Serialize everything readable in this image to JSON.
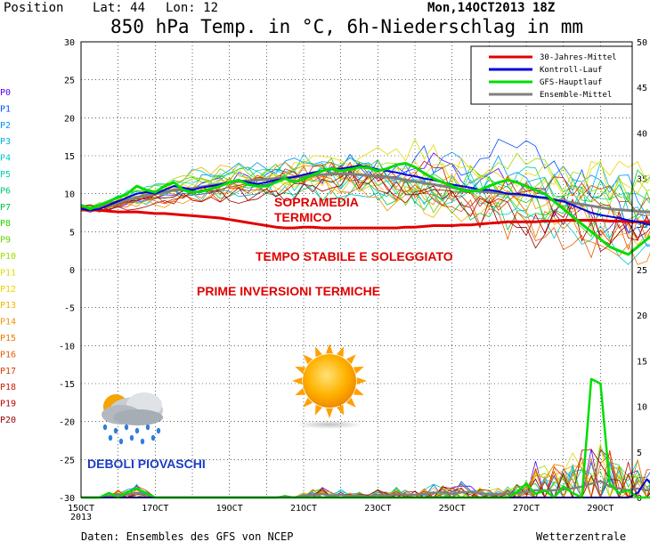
{
  "header": {
    "position_label": "Position",
    "lat_label": "Lat: 44",
    "lon_label": "Lon: 12",
    "date": "Mon,14OCT2013 18Z",
    "title": "850 hPa Temp. in °C, 6h-Niederschlag in mm"
  },
  "footer": {
    "source": "Daten: Ensembles des GFS von NCEP",
    "brand": "Wetterzentrale"
  },
  "chart_data": {
    "type": "line",
    "x_ticks": [
      "15OCT",
      "17OCT",
      "19OCT",
      "21OCT",
      "23OCT",
      "25OCT",
      "27OCT",
      "29OCT"
    ],
    "x_year": "2013",
    "left_axis": {
      "label": "",
      "range": [
        -30,
        30
      ],
      "ticks": [
        "30",
        "25",
        "20",
        "15",
        "10",
        "5",
        "0",
        "-5",
        "-10",
        "-15",
        "-20",
        "-25",
        "-30"
      ]
    },
    "right_axis": {
      "label": "",
      "range": [
        0,
        50
      ],
      "ticks": [
        "50",
        "45",
        "40",
        "35",
        "30",
        "25",
        "20",
        "15",
        "10",
        "5",
        "0"
      ]
    },
    "grid": true,
    "legend_position": "top-right",
    "legend": [
      {
        "name": "30-Jahres-Mittel",
        "color": "#e00000"
      },
      {
        "name": "Kontroll-Lauf",
        "color": "#0000dd"
      },
      {
        "name": "GFS-Hauptlauf",
        "color": "#00dd00"
      },
      {
        "name": "Ensemble-Mittel",
        "color": "#808080"
      }
    ],
    "members": [
      {
        "name": "P0",
        "color": "#5a00ff"
      },
      {
        "name": "P1",
        "color": "#0050ff"
      },
      {
        "name": "P2",
        "color": "#0090ff"
      },
      {
        "name": "P3",
        "color": "#00b4e0"
      },
      {
        "name": "P4",
        "color": "#00c8c8"
      },
      {
        "name": "P5",
        "color": "#00d2aa"
      },
      {
        "name": "P6",
        "color": "#00c878"
      },
      {
        "name": "P7",
        "color": "#00c840"
      },
      {
        "name": "P8",
        "color": "#28d200"
      },
      {
        "name": "P9",
        "color": "#64d200"
      },
      {
        "name": "P10",
        "color": "#a0dc00"
      },
      {
        "name": "P11",
        "color": "#dcdc00"
      },
      {
        "name": "P12",
        "color": "#f0d200"
      },
      {
        "name": "P13",
        "color": "#f0b400"
      },
      {
        "name": "P14",
        "color": "#f09600"
      },
      {
        "name": "P15",
        "color": "#f07800"
      },
      {
        "name": "P16",
        "color": "#e65a00"
      },
      {
        "name": "P17",
        "color": "#dc3c00"
      },
      {
        "name": "P18",
        "color": "#c81e00"
      },
      {
        "name": "P19",
        "color": "#b40000"
      },
      {
        "name": "P20",
        "color": "#960000"
      }
    ],
    "x_days": [
      0,
      0.25,
      0.5,
      0.75,
      1,
      1.25,
      1.5,
      1.75,
      2,
      2.25,
      2.5,
      2.75,
      3,
      3.25,
      3.5,
      3.75,
      4,
      4.25,
      4.5,
      4.75,
      5,
      5.25,
      5.5,
      5.75,
      6,
      6.25,
      6.5,
      6.75,
      7,
      7.25,
      7.5,
      7.75,
      8,
      8.25,
      8.5,
      8.75,
      9,
      9.25,
      9.5,
      9.75,
      10,
      10.25,
      10.5,
      10.75,
      11,
      11.25,
      11.5,
      11.75,
      12,
      12.25,
      12.5,
      12.75,
      13,
      13.25,
      13.5,
      13.75,
      14,
      14.25,
      14.5,
      14.75,
      15,
      15.25,
      15.5,
      15.75,
      16
    ],
    "climate_mean": [
      8,
      7.9,
      7.8,
      7.7,
      7.6,
      7.6,
      7.6,
      7.5,
      7.4,
      7.4,
      7.3,
      7.2,
      7.1,
      7,
      6.9,
      6.8,
      6.6,
      6.4,
      6.2,
      6,
      5.8,
      5.6,
      5.5,
      5.5,
      5.6,
      5.6,
      5.5,
      5.5,
      5.5,
      5.5,
      5.5,
      5.5,
      5.5,
      5.5,
      5.5,
      5.6,
      5.6,
      5.7,
      5.8,
      5.8,
      5.8,
      5.9,
      5.9,
      6,
      6.1,
      6.2,
      6.3,
      6.3,
      6.3,
      6.3,
      6.4,
      6.4,
      6.5,
      6.5,
      6.5,
      6.5,
      6.5,
      6.4,
      6.4,
      6.3,
      6.3,
      6.3,
      6.2,
      6.2,
      6.1
    ],
    "gfs_main": [
      8.5,
      8,
      8.5,
      9,
      9.5,
      10,
      11,
      10.5,
      10.2,
      11,
      11.5,
      10.5,
      10.2,
      10.3,
      10.6,
      11,
      11.5,
      11.8,
      11.2,
      11,
      11,
      11.5,
      12,
      11.5,
      12,
      12.5,
      13,
      13.3,
      13,
      13.2,
      13.5,
      13.4,
      13,
      13.3,
      13.8,
      14,
      13.5,
      12.7,
      12,
      11.5,
      11,
      10.5,
      10.3,
      10.5,
      11,
      11.5,
      11.8,
      11.5,
      11,
      10.5,
      10,
      9,
      8,
      7,
      6,
      5,
      4,
      3,
      2.5,
      2,
      3,
      4,
      5,
      5.5,
      6
    ],
    "control_run": [
      8,
      7.8,
      8,
      8.5,
      9,
      9.5,
      10,
      10.2,
      10,
      10.5,
      11,
      10.8,
      10.5,
      10.8,
      11,
      11.2,
      11.5,
      11.8,
      11.5,
      11.3,
      11.5,
      11.8,
      12,
      12.2,
      12.5,
      12.8,
      13,
      13.2,
      13.3,
      13.5,
      13.7,
      13.5,
      13.2,
      13,
      12.8,
      12.5,
      12.3,
      12,
      11.8,
      11.5,
      11.2,
      11,
      10.8,
      10.5,
      10.5,
      10.3,
      10,
      10,
      9.8,
      9.6,
      9.5,
      9.2,
      9,
      8.5,
      8,
      7.5,
      7.2,
      7,
      6.8,
      6.5,
      6.3,
      6,
      5.8,
      5.7,
      5.5
    ],
    "ensemble_mean": [
      8.2,
      8,
      8.2,
      8.5,
      8.8,
      9.2,
      9.5,
      9.8,
      10,
      10.2,
      10.5,
      10.6,
      10.7,
      10.9,
      11.1,
      11.3,
      11.5,
      11.6,
      11.7,
      11.8,
      11.9,
      12,
      12.1,
      12.2,
      12.3,
      12.4,
      12.5,
      12.6,
      12.6,
      12.6,
      12.5,
      12.4,
      12.3,
      12.2,
      12,
      11.8,
      11.6,
      11.4,
      11.2,
      11,
      10.8,
      10.6,
      10.4,
      10.3,
      10.2,
      10.1,
      10,
      9.9,
      9.8,
      9.6,
      9.4,
      9.2,
      9,
      8.8,
      8.6,
      8.4,
      8.2,
      8,
      7.9,
      7.8,
      7.7,
      7.6,
      7.5,
      7.4,
      7.3
    ],
    "precip_gfs_mm": [
      0,
      0,
      0,
      0.5,
      0,
      0.6,
      1,
      0.5,
      0,
      0,
      0,
      0,
      0,
      0,
      0,
      0,
      0,
      0,
      0,
      0,
      0,
      0,
      0,
      0,
      0,
      0,
      0,
      0,
      0,
      0,
      0,
      0,
      0,
      0,
      0,
      0,
      0,
      0,
      0,
      0,
      0,
      0,
      0,
      0,
      0,
      0,
      0,
      0.6,
      1.5,
      0.4,
      0.8,
      0,
      1.2,
      0.5,
      0,
      13,
      12.5,
      1.5,
      0.5,
      0.8,
      0,
      0,
      0,
      0,
      0
    ],
    "precip_control_mm": [
      0,
      0,
      0,
      0,
      0,
      0,
      0,
      0,
      0,
      0,
      0,
      0,
      0,
      0,
      0,
      0,
      0,
      0,
      0,
      0,
      0,
      0,
      0,
      0,
      0,
      0,
      0,
      0,
      0,
      0,
      0,
      0,
      0,
      0,
      0,
      0,
      0,
      0,
      0,
      0,
      0,
      0,
      0,
      0,
      0,
      0,
      0,
      0,
      0,
      0,
      0,
      0,
      0,
      0,
      0,
      0,
      0,
      0,
      0,
      0,
      0.5,
      2,
      1,
      3,
      0.5
    ],
    "precip_mean_mm": [
      0,
      0,
      0,
      0.2,
      0.3,
      0.3,
      0.5,
      0.3,
      0,
      0,
      0,
      0,
      0,
      0,
      0,
      0,
      0,
      0,
      0,
      0,
      0,
      0,
      0.1,
      0,
      0.2,
      0.3,
      0.4,
      0.2,
      0.3,
      0.2,
      0.2,
      0.1,
      0.3,
      0.2,
      0.4,
      0.3,
      0.3,
      0.4,
      0.5,
      0.6,
      0.4,
      0.6,
      0.6,
      0.5,
      0.3,
      0.4,
      0.4,
      0.5,
      0.6,
      0.8,
      0.7,
      0.8,
      0.9,
      1,
      1.2,
      1.5,
      1.8,
      1.2,
      1,
      0.8,
      1,
      0.8,
      0.8,
      0.7,
      0.6
    ]
  },
  "annotations": {
    "sopramedia_1": "SOPRAMEDIA",
    "sopramedia_2": "TERMICO",
    "stabile": "TEMPO STABILE E SOLEGGIATO",
    "inversioni": "PRIME INVERSIONI TERMICHE",
    "piovaschi": "DEBOLI PIOVASCHI",
    "sun_icon": "sun-icon",
    "rain_cloud_icon": "rain-cloud-icon"
  }
}
